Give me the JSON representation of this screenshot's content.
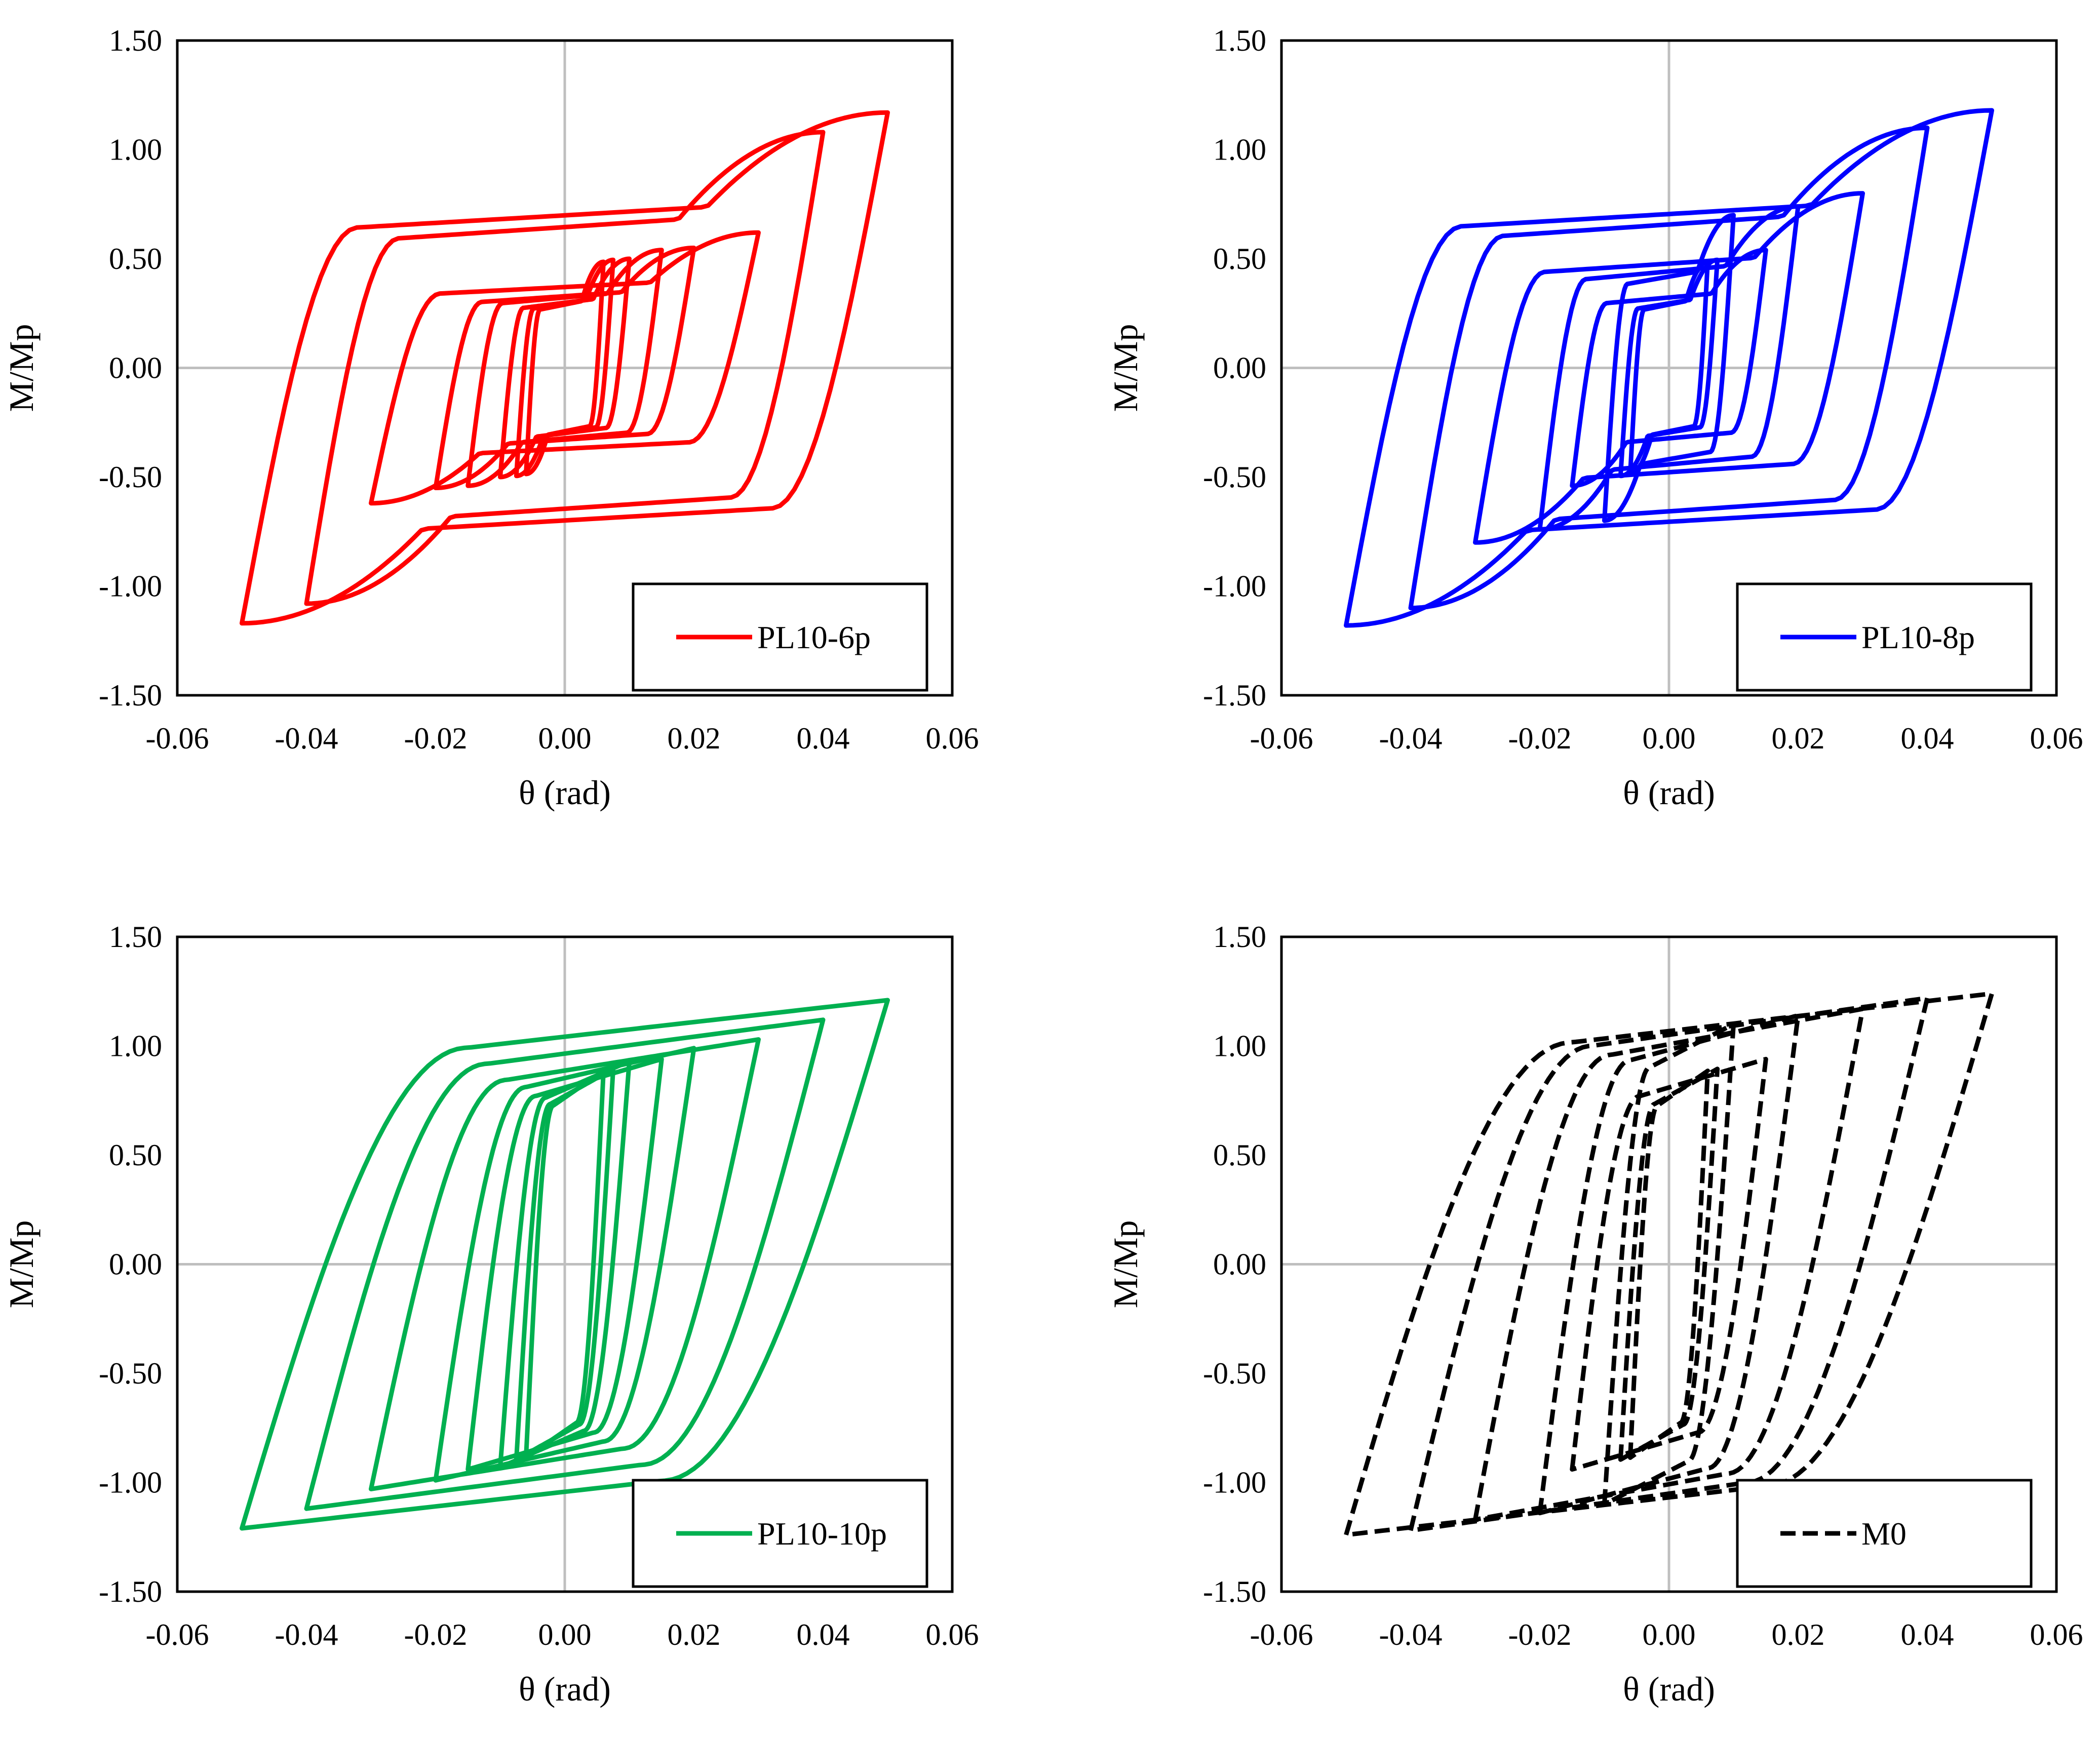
{
  "chart_data": [
    {
      "type": "line",
      "xlabel": "θ (rad)",
      "ylabel": "M/Mp",
      "xlim": [
        -0.06,
        0.06
      ],
      "ylim": [
        -1.5,
        1.5
      ],
      "xticks": [
        "-0.06",
        "-0.04",
        "-0.02",
        "0.00",
        "0.02",
        "0.04",
        "0.06"
      ],
      "yticks": [
        "1.50",
        "1.00",
        "0.50",
        "0.00",
        "-0.50",
        "-1.00",
        "-1.50"
      ],
      "legend_position": "bottom-right",
      "series": [
        {
          "name": "PL10-6p",
          "color": "#ff0000",
          "dash": "solid",
          "style": "pinched",
          "amplitudes": [
            0.006,
            0.0075,
            0.01,
            0.015,
            0.02,
            0.03,
            0.04,
            0.05
          ],
          "points": [
            [
              -0.05,
              -1.16
            ],
            [
              0.05,
              1.17
            ],
            [
              -0.04,
              -1.1
            ],
            [
              0.04,
              1.08
            ],
            [
              -0.03,
              -0.62
            ],
            [
              0.03,
              0.62
            ],
            [
              -0.02,
              -0.54
            ],
            [
              0.02,
              0.55
            ],
            [
              -0.01,
              -0.5
            ],
            [
              0.01,
              0.5
            ]
          ]
        }
      ]
    },
    {
      "type": "line",
      "xlabel": "θ (rad)",
      "ylabel": "M/Mp",
      "xlim": [
        -0.06,
        0.06
      ],
      "ylim": [
        -1.5,
        1.5
      ],
      "xticks": [
        "-0.06",
        "-0.04",
        "-0.02",
        "0.00",
        "0.02",
        "0.04",
        "0.06"
      ],
      "yticks": [
        "1.50",
        "1.00",
        "0.50",
        "0.00",
        "-0.50",
        "-1.00",
        "-1.50"
      ],
      "legend_position": "bottom-right",
      "series": [
        {
          "name": "PL10-8p",
          "color": "#0000ff",
          "dash": "solid",
          "style": "pinched",
          "amplitudes": [
            0.006,
            0.0075,
            0.01,
            0.015,
            0.02,
            0.03,
            0.04,
            0.05
          ],
          "points": [
            [
              -0.05,
              -1.18
            ],
            [
              0.05,
              1.18
            ],
            [
              -0.04,
              -1.11
            ],
            [
              0.04,
              1.1
            ],
            [
              -0.03,
              -0.8
            ],
            [
              0.03,
              0.8
            ],
            [
              -0.02,
              -0.75
            ],
            [
              0.02,
              0.74
            ],
            [
              -0.01,
              -0.71
            ],
            [
              0.01,
              0.7
            ]
          ]
        }
      ]
    },
    {
      "type": "line",
      "xlabel": "θ (rad)",
      "ylabel": "M/Mp",
      "xlim": [
        -0.06,
        0.06
      ],
      "ylim": [
        -1.5,
        1.5
      ],
      "xticks": [
        "-0.06",
        "-0.04",
        "-0.02",
        "0.00",
        "0.02",
        "0.04",
        "0.06"
      ],
      "yticks": [
        "1.50",
        "1.00",
        "0.50",
        "0.00",
        "-0.50",
        "-1.00",
        "-1.50"
      ],
      "legend_position": "bottom-right",
      "series": [
        {
          "name": "PL10-10p",
          "color": "#00b050",
          "dash": "solid",
          "style": "full",
          "amplitudes": [
            0.006,
            0.0075,
            0.01,
            0.015,
            0.02,
            0.03,
            0.04,
            0.05
          ],
          "points": [
            [
              -0.05,
              -1.2
            ],
            [
              0.05,
              1.21
            ],
            [
              -0.04,
              -1.11
            ],
            [
              0.04,
              1.12
            ],
            [
              -0.03,
              -1.02
            ],
            [
              0.03,
              1.03
            ],
            [
              -0.02,
              -0.98
            ],
            [
              0.02,
              0.99
            ],
            [
              -0.01,
              -0.93
            ],
            [
              0.01,
              0.93
            ]
          ]
        }
      ]
    },
    {
      "type": "line",
      "xlabel": "θ (rad)",
      "ylabel": "M/Mp",
      "xlim": [
        -0.06,
        0.06
      ],
      "ylim": [
        -1.5,
        1.5
      ],
      "xticks": [
        "-0.06",
        "-0.04",
        "-0.02",
        "0.00",
        "0.02",
        "0.04",
        "0.06"
      ],
      "yticks": [
        "1.50",
        "1.00",
        "0.50",
        "0.00",
        "-0.50",
        "-1.00",
        "-1.50"
      ],
      "legend_position": "bottom-right",
      "series": [
        {
          "name": "M0",
          "color": "#000000",
          "dash": "dashed",
          "style": "full",
          "amplitudes": [
            0.006,
            0.0075,
            0.01,
            0.015,
            0.02,
            0.03,
            0.04,
            0.05
          ],
          "points": [
            [
              -0.05,
              -1.13
            ],
            [
              0.05,
              1.24
            ],
            [
              -0.04,
              -1.22
            ],
            [
              0.04,
              1.22
            ],
            [
              -0.03,
              -1.19
            ],
            [
              0.03,
              1.17
            ],
            [
              -0.02,
              -1.16
            ],
            [
              0.02,
              1.14
            ],
            [
              -0.01,
              -1.12
            ],
            [
              0.01,
              1.1
            ]
          ]
        }
      ]
    }
  ]
}
